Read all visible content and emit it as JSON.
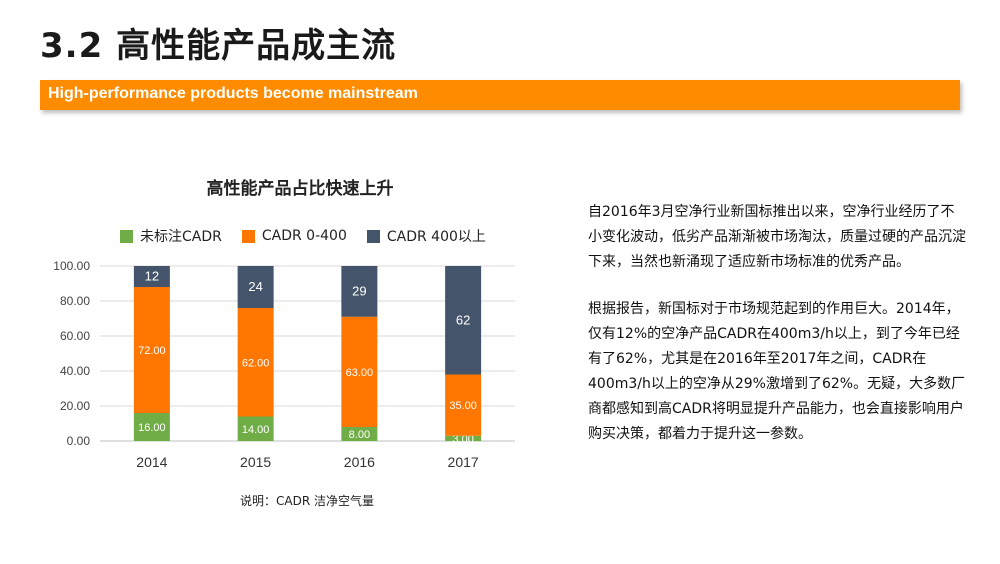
{
  "slide": {
    "title": "3.2 高性能产品成主流",
    "subtitle": "High-performance products become mainstream",
    "caption": "说明：CADR 洁净空气量",
    "paragraphs": [
      "自2016年3月空净行业新国标推出以来，空净行业经历了不小变化波动，低劣产品渐渐被市场淘汰，质量过硬的产品沉淀下来，当然也新涌现了适应新市场标准的优秀产品。",
      "根据报告，新国标对于市场规范起到的作用巨大。2014年，仅有12%的空净产品CADR在400m3/h以上，到了今年已经有了62%，尤其是在2016年至2017年之间，CADR在400m3/h以上的空净从29%激增到了62%。无疑，大多数厂商都感知到高CADR将明显提升产品能力，也会直接影响用户购买决策，都着力于提升这一参数。"
    ],
    "colors": {
      "banner": "#ff8c00"
    }
  },
  "chart_data": {
    "type": "bar",
    "stacked": true,
    "title": "高性能产品占比快速上升",
    "categories": [
      "2014",
      "2015",
      "2016",
      "2017"
    ],
    "series": [
      {
        "name": "未标注CADR",
        "color": "#70ad47",
        "values": [
          16,
          14,
          8,
          3
        ],
        "labels": [
          "16.00",
          "14.00",
          "8.00",
          "3.00"
        ]
      },
      {
        "name": "CADR 0-400",
        "color": "#ff7700",
        "values": [
          72,
          62,
          63,
          35
        ],
        "labels": [
          "72.00",
          "62.00",
          "63.00",
          "35.00"
        ]
      },
      {
        "name": "CADR 400以上",
        "color": "#44546a",
        "values": [
          12,
          24,
          29,
          62
        ],
        "labels": [
          "12",
          "24",
          "29",
          "62"
        ]
      }
    ],
    "ylim": [
      0,
      100
    ],
    "yticks": [
      "0.00",
      "20.00",
      "40.00",
      "60.00",
      "80.00",
      "100.00"
    ],
    "xlabel": "",
    "ylabel": "",
    "grid": true,
    "legend": "top"
  }
}
